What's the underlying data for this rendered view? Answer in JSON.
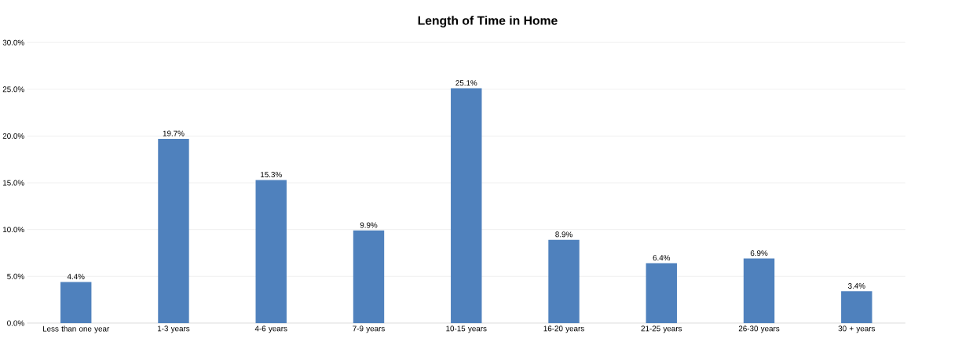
{
  "chart_data": {
    "type": "bar",
    "title": "Length of Time in Home",
    "categories": [
      "Less than one year",
      "1-3 years",
      "4-6 years",
      "7-9 years",
      "10-15 years",
      "16-20 years",
      "21-25 years",
      "26-30 years",
      "30 + years"
    ],
    "values": [
      4.4,
      19.7,
      15.3,
      9.9,
      25.1,
      8.9,
      6.4,
      6.9,
      3.4
    ],
    "value_labels": [
      "4.4%",
      "19.7%",
      "15.3%",
      "9.9%",
      "25.1%",
      "8.9%",
      "6.4%",
      "6.9%",
      "3.4%"
    ],
    "color": "#4f81bd",
    "ylim": [
      0,
      30
    ],
    "yticks": [
      {
        "value": 0,
        "label": "0.0%"
      },
      {
        "value": 5,
        "label": "5.0%"
      },
      {
        "value": 10,
        "label": "10.0%"
      },
      {
        "value": 15,
        "label": "15.0%"
      },
      {
        "value": 20,
        "label": "20.0%"
      },
      {
        "value": 25,
        "label": "25.0%"
      },
      {
        "value": 30,
        "label": "30.0%"
      }
    ],
    "grid": "y"
  }
}
